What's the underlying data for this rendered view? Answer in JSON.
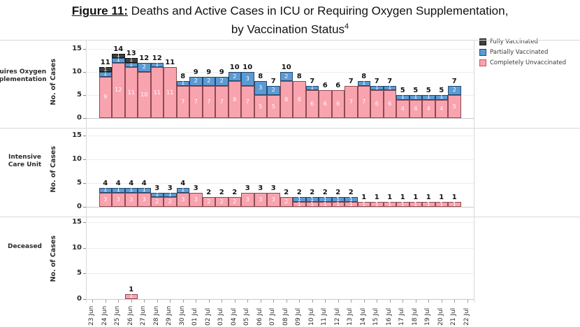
{
  "title": {
    "prefix": "Figure 11:",
    "line1_rest": " Deaths and Active Cases in ICU or Requiring Oxygen Supplementation,",
    "line2": "by Vaccination Status",
    "superscript": "4"
  },
  "legend": [
    {
      "label": "Fully Vaccinated",
      "color": "#404040",
      "border": "#141414"
    },
    {
      "label": "Partially Vaccinated",
      "color": "#5b9bd5",
      "border": "#24496b"
    },
    {
      "label": "Completely Unvaccinated",
      "color": "#f9a3af",
      "border": "#c25563"
    }
  ],
  "chart_data": {
    "type": "bar",
    "stacked": true,
    "grid": true,
    "legend_position": "top-right",
    "categories": [
      "23 Jun",
      "24 Jun",
      "25 Jun",
      "26 Jun",
      "27 Jun",
      "28 Jun",
      "29 Jun",
      "30 Jun",
      "01 Jul",
      "02 Jul",
      "03 Jul",
      "04 Jul",
      "05 Jul",
      "06 Jul",
      "07 Jul",
      "08 Jul",
      "09 Jul",
      "10 Jul",
      "11 Jul",
      "12 Jul",
      "13 Jul",
      "14 Jul",
      "15 Jul",
      "16 Jul",
      "17 Jul",
      "18 Jul",
      "19 Jul",
      "20 Jul",
      "21 Jul",
      "22 Jul"
    ],
    "panels": [
      {
        "label": "Requires Oxygen Supplementation",
        "ylabel": "No. of Cases",
        "ylim": [
          0,
          15
        ],
        "yticks": [
          0,
          5,
          10,
          15
        ],
        "series": [
          {
            "name": "Completely Unvaccinated",
            "values": [
              0,
              9,
              12,
              11,
              10,
              11,
              11,
              7,
              7,
              7,
              7,
              8,
              7,
              5,
              5,
              8,
              8,
              6,
              6,
              6,
              7,
              7,
              6,
              6,
              4,
              4,
              4,
              4,
              5,
              0
            ]
          },
          {
            "name": "Partially Vaccinated",
            "values": [
              0,
              1,
              1,
              1,
              2,
              1,
              0,
              1,
              2,
              2,
              2,
              2,
              3,
              3,
              2,
              2,
              0,
              1,
              0,
              0,
              0,
              1,
              1,
              1,
              1,
              1,
              1,
              1,
              2,
              0
            ]
          },
          {
            "name": "Fully Vaccinated",
            "values": [
              0,
              1,
              1,
              1,
              0,
              0,
              0,
              0,
              0,
              0,
              0,
              0,
              0,
              0,
              0,
              0,
              0,
              0,
              0,
              0,
              0,
              0,
              0,
              0,
              0,
              0,
              0,
              0,
              0,
              0
            ]
          }
        ]
      },
      {
        "label": "Intensive Care Unit",
        "ylabel": "No. of Cases",
        "ylim": [
          0,
          15
        ],
        "yticks": [
          0,
          5,
          10,
          15
        ],
        "series": [
          {
            "name": "Completely Unvaccinated",
            "values": [
              0,
              3,
              3,
              3,
              3,
              2,
              2,
              3,
              3,
              2,
              2,
              2,
              3,
              3,
              3,
              2,
              1,
              1,
              1,
              1,
              1,
              1,
              1,
              1,
              1,
              1,
              1,
              1,
              1,
              0
            ]
          },
          {
            "name": "Partially Vaccinated",
            "values": [
              0,
              1,
              1,
              1,
              1,
              1,
              1,
              1,
              0,
              0,
              0,
              0,
              0,
              0,
              0,
              0,
              1,
              1,
              1,
              1,
              1,
              0,
              0,
              0,
              0,
              0,
              0,
              0,
              0,
              0
            ]
          },
          {
            "name": "Fully Vaccinated",
            "values": [
              0,
              0,
              0,
              0,
              0,
              0,
              0,
              0,
              0,
              0,
              0,
              0,
              0,
              0,
              0,
              0,
              0,
              0,
              0,
              0,
              0,
              0,
              0,
              0,
              0,
              0,
              0,
              0,
              0,
              0
            ]
          }
        ]
      },
      {
        "label": "Deceased",
        "ylabel": "No. of Cases",
        "ylim": [
          0,
          15
        ],
        "yticks": [
          0,
          5,
          10,
          15
        ],
        "series": [
          {
            "name": "Completely Unvaccinated",
            "values": [
              0,
              0,
              0,
              1,
              0,
              0,
              0,
              0,
              0,
              0,
              0,
              0,
              0,
              0,
              0,
              0,
              0,
              0,
              0,
              0,
              0,
              0,
              0,
              0,
              0,
              0,
              0,
              0,
              0,
              0
            ]
          },
          {
            "name": "Partially Vaccinated",
            "values": [
              0,
              0,
              0,
              0,
              0,
              0,
              0,
              0,
              0,
              0,
              0,
              0,
              0,
              0,
              0,
              0,
              0,
              0,
              0,
              0,
              0,
              0,
              0,
              0,
              0,
              0,
              0,
              0,
              0,
              0
            ]
          },
          {
            "name": "Fully Vaccinated",
            "values": [
              0,
              0,
              0,
              0,
              0,
              0,
              0,
              0,
              0,
              0,
              0,
              0,
              0,
              0,
              0,
              0,
              0,
              0,
              0,
              0,
              0,
              0,
              0,
              0,
              0,
              0,
              0,
              0,
              0,
              0
            ]
          }
        ]
      }
    ]
  }
}
